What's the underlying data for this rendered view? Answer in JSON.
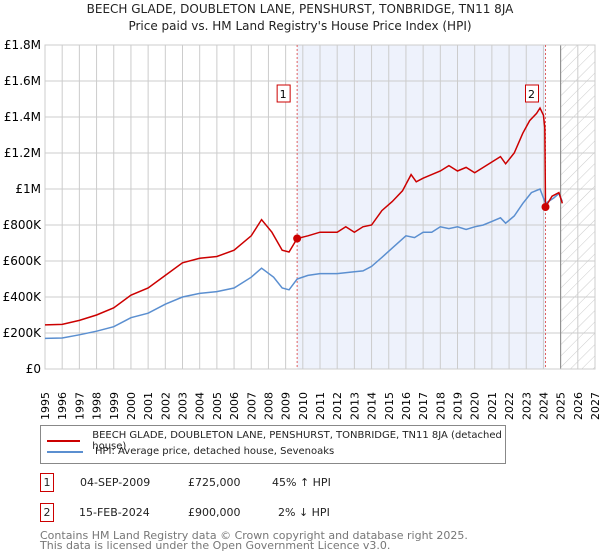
{
  "title": "BEECH GLADE, DOUBLETON LANE, PENSHURST, TONBRIDGE, TN11 8JA",
  "subtitle": "Price paid vs. HM Land Registry's House Price Index (HPI)",
  "legend": {
    "red": "BEECH GLADE, DOUBLETON LANE, PENSHURST, TONBRIDGE, TN11 8JA (detached house)",
    "blue": "HPI: Average price, detached house, Sevenoaks"
  },
  "transactions": [
    {
      "num": "1",
      "date": "04-SEP-2009",
      "price": "£725,000",
      "hpi": "45% ↑ HPI"
    },
    {
      "num": "2",
      "date": "15-FEB-2024",
      "price": "£900,000",
      "hpi": "2% ↓ HPI"
    }
  ],
  "footer": [
    "Contains HM Land Registry data © Crown copyright and database right 2025.",
    "This data is licensed under the Open Government Licence v3.0."
  ],
  "colors": {
    "red": "#cc0000",
    "blue": "#5b8fd0",
    "shade": "#eef2fc"
  },
  "chart_data": {
    "type": "line",
    "xlim": [
      1995,
      2027
    ],
    "ylim": [
      0,
      1800000
    ],
    "xticks": [
      "1995",
      "1996",
      "1997",
      "1998",
      "1999",
      "2000",
      "2001",
      "2002",
      "2003",
      "2004",
      "2005",
      "2006",
      "2007",
      "2008",
      "2009",
      "2010",
      "2011",
      "2012",
      "2013",
      "2014",
      "2015",
      "2016",
      "2017",
      "2018",
      "2019",
      "2020",
      "2021",
      "2022",
      "2023",
      "2024",
      "2025",
      "2026",
      "2027"
    ],
    "yticks": [
      {
        "v": 0,
        "label": "£0"
      },
      {
        "v": 200000,
        "label": "£200K"
      },
      {
        "v": 400000,
        "label": "£400K"
      },
      {
        "v": 600000,
        "label": "£600K"
      },
      {
        "v": 800000,
        "label": "£800K"
      },
      {
        "v": 1000000,
        "label": "£1M"
      },
      {
        "v": 1200000,
        "label": "£1.2M"
      },
      {
        "v": 1400000,
        "label": "£1.4M"
      },
      {
        "v": 1600000,
        "label": "£1.6M"
      },
      {
        "v": 1800000,
        "label": "£1.8M"
      }
    ],
    "shaded_range": [
      2009.67,
      2024.12
    ],
    "hatched_from": 2025.0,
    "markers": [
      {
        "label": "1",
        "x": 2009.67,
        "y": 725000
      },
      {
        "label": "2",
        "x": 2024.12,
        "y": 900000
      }
    ],
    "series": [
      {
        "name": "price",
        "color": "#cc0000",
        "points": [
          [
            1995,
            245000
          ],
          [
            1996,
            248000
          ],
          [
            1997,
            270000
          ],
          [
            1998,
            300000
          ],
          [
            1999,
            340000
          ],
          [
            2000,
            410000
          ],
          [
            2001,
            450000
          ],
          [
            2002,
            520000
          ],
          [
            2003,
            590000
          ],
          [
            2004,
            615000
          ],
          [
            2005,
            625000
          ],
          [
            2006,
            660000
          ],
          [
            2007,
            740000
          ],
          [
            2007.6,
            830000
          ],
          [
            2008.2,
            760000
          ],
          [
            2008.8,
            660000
          ],
          [
            2009.2,
            650000
          ],
          [
            2009.67,
            725000
          ],
          [
            2010.3,
            740000
          ],
          [
            2011,
            760000
          ],
          [
            2012,
            760000
          ],
          [
            2012.5,
            790000
          ],
          [
            2013,
            760000
          ],
          [
            2013.5,
            790000
          ],
          [
            2014,
            800000
          ],
          [
            2014.6,
            880000
          ],
          [
            2015.2,
            930000
          ],
          [
            2015.8,
            990000
          ],
          [
            2016.3,
            1080000
          ],
          [
            2016.6,
            1040000
          ],
          [
            2017,
            1060000
          ],
          [
            2017.5,
            1080000
          ],
          [
            2018,
            1100000
          ],
          [
            2018.5,
            1130000
          ],
          [
            2019,
            1100000
          ],
          [
            2019.5,
            1120000
          ],
          [
            2020,
            1090000
          ],
          [
            2020.5,
            1120000
          ],
          [
            2021,
            1150000
          ],
          [
            2021.5,
            1180000
          ],
          [
            2021.8,
            1140000
          ],
          [
            2022.3,
            1200000
          ],
          [
            2022.8,
            1310000
          ],
          [
            2023.2,
            1380000
          ],
          [
            2023.6,
            1420000
          ],
          [
            2023.8,
            1450000
          ],
          [
            2024.0,
            1410000
          ],
          [
            2024.08,
            1340000
          ],
          [
            2024.12,
            900000
          ],
          [
            2024.5,
            960000
          ],
          [
            2024.9,
            980000
          ],
          [
            2025.1,
            920000
          ]
        ]
      },
      {
        "name": "HPI",
        "color": "#5b8fd0",
        "points": [
          [
            1995,
            170000
          ],
          [
            1996,
            172000
          ],
          [
            1997,
            190000
          ],
          [
            1998,
            210000
          ],
          [
            1999,
            235000
          ],
          [
            2000,
            285000
          ],
          [
            2001,
            310000
          ],
          [
            2002,
            360000
          ],
          [
            2003,
            400000
          ],
          [
            2004,
            420000
          ],
          [
            2005,
            430000
          ],
          [
            2006,
            450000
          ],
          [
            2007,
            510000
          ],
          [
            2007.6,
            560000
          ],
          [
            2008.3,
            510000
          ],
          [
            2008.8,
            450000
          ],
          [
            2009.2,
            440000
          ],
          [
            2009.67,
            500000
          ],
          [
            2010.3,
            520000
          ],
          [
            2011,
            530000
          ],
          [
            2012,
            530000
          ],
          [
            2013,
            540000
          ],
          [
            2013.5,
            545000
          ],
          [
            2014,
            570000
          ],
          [
            2014.6,
            620000
          ],
          [
            2015.3,
            680000
          ],
          [
            2016,
            740000
          ],
          [
            2016.5,
            730000
          ],
          [
            2017,
            760000
          ],
          [
            2017.5,
            760000
          ],
          [
            2018,
            790000
          ],
          [
            2018.5,
            780000
          ],
          [
            2019,
            790000
          ],
          [
            2019.5,
            775000
          ],
          [
            2020,
            790000
          ],
          [
            2020.5,
            800000
          ],
          [
            2021,
            820000
          ],
          [
            2021.5,
            840000
          ],
          [
            2021.8,
            810000
          ],
          [
            2022.3,
            850000
          ],
          [
            2022.8,
            920000
          ],
          [
            2023.3,
            980000
          ],
          [
            2023.8,
            1000000
          ],
          [
            2024.12,
            920000
          ],
          [
            2024.6,
            950000
          ],
          [
            2024.9,
            975000
          ],
          [
            2025.1,
            930000
          ]
        ]
      }
    ]
  }
}
